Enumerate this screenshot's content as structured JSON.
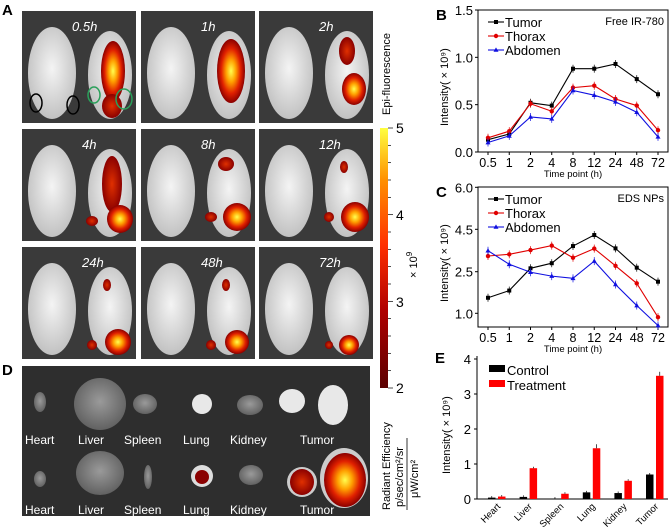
{
  "panels": {
    "A": {
      "letter": "A",
      "time_labels": [
        "0.5h",
        "1h",
        "2h",
        "4h",
        "8h",
        "12h",
        "24h",
        "48h",
        "72h"
      ],
      "colorbar": {
        "title": "Epi-fluorescence",
        "ticks": [
          "5",
          "4",
          "3",
          "2"
        ],
        "multiplier": "× 10",
        "exponent": "9",
        "unit_line1": "Radiant Efficiency",
        "unit_line2": "p/sec/cm²/sr",
        "unit_line3": "μW/cm²",
        "colors": [
          "#5a0000",
          "#b00000",
          "#ff3000",
          "#ff9000",
          "#ffff40"
        ]
      }
    },
    "D": {
      "letter": "D",
      "row1_labels": [
        "Heart",
        "Liver",
        "Spleen",
        "Lung",
        "Kidney",
        "Tumor"
      ],
      "row2_labels": [
        "Heart",
        "Liver",
        "Spleen",
        "Lung",
        "Kidney",
        "Tumor"
      ]
    }
  },
  "chart_data": [
    {
      "panel": "B",
      "type": "line",
      "annotation": "Free IR-780",
      "xlabel": "Time point (h)",
      "ylabel": "Intensity( × 10⁹)",
      "x": [
        "0.5",
        "1",
        "2",
        "4",
        "8",
        "12",
        "24",
        "48",
        "72"
      ],
      "ylim": [
        0,
        1.5
      ],
      "yticks": [
        "0.0",
        "0.5",
        "1.0",
        "1.5"
      ],
      "legend": "top-left",
      "series": [
        {
          "name": "Tumor",
          "color": "#000000",
          "marker": "square",
          "values": [
            0.13,
            0.19,
            0.52,
            0.49,
            0.88,
            0.88,
            0.93,
            0.77,
            0.61
          ]
        },
        {
          "name": "Thorax",
          "color": "#e00000",
          "marker": "circle",
          "values": [
            0.15,
            0.22,
            0.51,
            0.43,
            0.68,
            0.7,
            0.56,
            0.49,
            0.23
          ]
        },
        {
          "name": "Abdomen",
          "color": "#1010e0",
          "marker": "triangle",
          "values": [
            0.1,
            0.17,
            0.37,
            0.35,
            0.65,
            0.6,
            0.53,
            0.42,
            0.16
          ]
        }
      ]
    },
    {
      "panel": "C",
      "type": "line",
      "annotation": "EDS NPs",
      "xlabel": "Time point (h)",
      "ylabel": "Intensity( × 10⁹)",
      "x": [
        "0.5",
        "1",
        "2",
        "4",
        "8",
        "12",
        "24",
        "48",
        "72"
      ],
      "yticks": [
        "1.0",
        "2.5",
        "4.5",
        "6.0"
      ],
      "legend": "top-left",
      "series": [
        {
          "name": "Tumor",
          "color": "#000000",
          "marker": "square",
          "values": [
            1.56,
            1.82,
            2.66,
            2.9,
            3.71,
            4.23,
            3.6,
            2.69,
            2.14
          ]
        },
        {
          "name": "Thorax",
          "color": "#e00000",
          "marker": "circle",
          "values": [
            3.24,
            3.32,
            3.52,
            3.73,
            3.16,
            3.59,
            2.78,
            2.08,
            0.86
          ]
        },
        {
          "name": "Abdomen",
          "color": "#1010e0",
          "marker": "triangle",
          "values": [
            3.49,
            2.85,
            2.48,
            2.34,
            2.26,
            3.0,
            2.04,
            1.28,
            0.56
          ]
        }
      ]
    },
    {
      "panel": "E",
      "type": "bar",
      "ylabel": "Intensity( × 10⁹)",
      "categories": [
        "Heart",
        "Liver",
        "Spleen",
        "Lung",
        "Kidney",
        "Tumor"
      ],
      "ylim": [
        0,
        4
      ],
      "yticks": [
        "0",
        "1",
        "2",
        "3",
        "4"
      ],
      "legend": "top-left",
      "series": [
        {
          "name": "Control",
          "color": "#000000",
          "values": [
            0.04,
            0.06,
            0.01,
            0.19,
            0.17,
            0.7
          ]
        },
        {
          "name": "Treatment",
          "color": "#ff0000",
          "values": [
            0.07,
            0.88,
            0.15,
            1.45,
            0.52,
            3.52
          ]
        }
      ]
    }
  ]
}
